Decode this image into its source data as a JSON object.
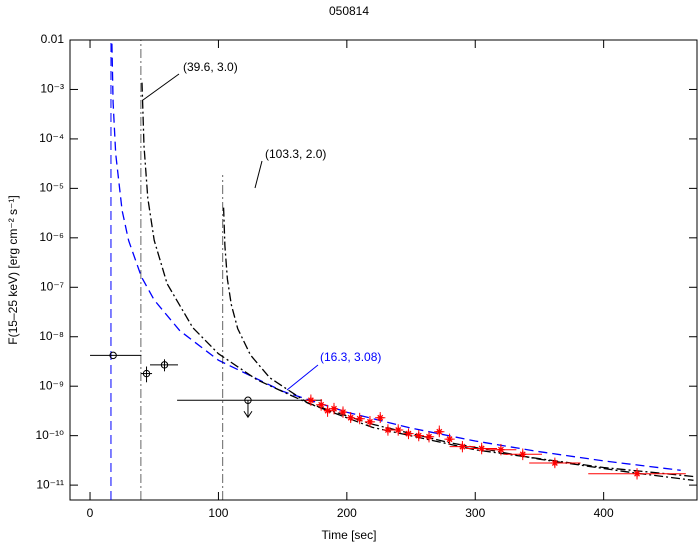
{
  "chart_data": {
    "type": "scatter",
    "title": "050814",
    "x_label": "Time [sec]",
    "y_label": "F(15–25 keV) [erg cm⁻² s⁻¹]",
    "log_y": true,
    "xlim": [
      -15.6,
      472.7
    ],
    "xticks": [
      0,
      100,
      200,
      300,
      400
    ],
    "ylim": [
      5e-12,
      0.01
    ],
    "yticks": [
      0.01,
      {
        "value": 0.001,
        "label": "10⁻³"
      },
      {
        "value": 0.0001,
        "label": "10⁻⁴"
      },
      {
        "value": 1e-05,
        "label": "10⁻⁵"
      },
      {
        "value": 1e-06,
        "label": "10⁻⁶"
      },
      {
        "value": 1e-07,
        "label": "10⁻⁷"
      },
      {
        "value": 1e-08,
        "label": "10⁻⁸"
      },
      {
        "value": 1e-09,
        "label": "10⁻⁹"
      },
      {
        "value": 1e-10,
        "label": "10⁻¹⁰"
      },
      {
        "value": 1e-11,
        "label": "10⁻¹¹"
      }
    ],
    "series": [
      {
        "color": "#000000",
        "marker": "circle",
        "x": [
          18,
          44,
          58,
          123
        ],
        "values": [
          4.2e-09,
          1.8e-09,
          2.7e-09,
          5.2e-10
        ],
        "xlo": [
          0,
          39.7,
          46.7,
          67.8
        ],
        "xhi": [
          40,
          48.3,
          68.5,
          180.7
        ],
        "ylo": [
          null,
          1.2e-09,
          2e-09,
          null
        ],
        "yhi": [
          null,
          2.5e-09,
          3.5e-09,
          null
        ],
        "upper_limit": [
          false,
          false,
          false,
          true
        ]
      },
      {
        "color": "#ff0000",
        "marker": "star",
        "x": [
          172,
          180,
          185,
          190,
          197,
          203,
          210,
          218,
          226,
          232,
          240,
          248,
          256,
          264,
          272,
          280,
          290,
          305,
          320,
          337,
          362,
          426
        ],
        "values": [
          5.2e-10,
          4.2e-10,
          3.2e-10,
          3.5e-10,
          3e-10,
          2.3e-10,
          2.2e-10,
          1.9e-10,
          2.3e-10,
          1.3e-10,
          1.3e-10,
          1.1e-10,
          1e-10,
          9.5e-11,
          1.2e-10,
          8.5e-11,
          6e-11,
          5.5e-11,
          5.2e-11,
          4.2e-11,
          2.8e-11,
          1.7e-11
        ],
        "xlo": [
          168,
          176,
          182,
          187,
          194,
          200,
          206,
          214,
          222,
          228,
          236,
          244,
          252,
          260,
          268,
          276,
          280,
          293,
          308,
          322,
          342,
          388
        ],
        "xhi": [
          176,
          184,
          188,
          193,
          200,
          206,
          214,
          222,
          230,
          236,
          244,
          252,
          260,
          268,
          276,
          284,
          300,
          317,
          332,
          352,
          382,
          464
        ],
        "ylo": [
          4e-10,
          3.2e-10,
          2.4e-10,
          2.7e-10,
          2.3e-10,
          1.8e-10,
          1.7e-10,
          1.5e-10,
          1.8e-10,
          1e-10,
          1e-10,
          8.5e-11,
          7.7e-11,
          7.3e-11,
          9.3e-11,
          6.6e-11,
          4.6e-11,
          4.2e-11,
          4e-11,
          3.2e-11,
          2.2e-11,
          1.3e-11
        ],
        "yhi": [
          6.8e-10,
          5.5e-10,
          4.2e-10,
          4.6e-10,
          3.9e-10,
          3e-10,
          2.9e-10,
          2.5e-10,
          3e-10,
          1.7e-10,
          1.7e-10,
          1.4e-10,
          1.3e-10,
          1.2e-10,
          1.6e-10,
          1.1e-10,
          7.8e-11,
          7.2e-11,
          6.8e-11,
          5.5e-11,
          3.6e-11,
          2.2e-11
        ]
      }
    ],
    "models": [
      {
        "label": "(16.3, 3.08)",
        "t0": 16.3,
        "color": "#0000ff",
        "dash": "dashed",
        "x": [
          17,
          18,
          20,
          25,
          30,
          40,
          50,
          70,
          100,
          150,
          200,
          250,
          300,
          350,
          400,
          460
        ],
        "values": [
          0.0084,
          0.000546,
          5e-05,
          3.58e-06,
          8.83e-07,
          1.63e-07,
          5.52e-08,
          1.32e-08,
          3.35e-09,
          7.9e-10,
          2.98e-10,
          1.42e-10,
          7.81e-11,
          4.74e-11,
          3.08e-11,
          1.99e-11
        ]
      },
      {
        "label": "(39.6, 3.0)",
        "t0": 39.6,
        "color": "#000000",
        "dash": "dashdot",
        "x": [
          40.5,
          42,
          45,
          50,
          60,
          80,
          100,
          130,
          170,
          220,
          280,
          350,
          420,
          470
        ],
        "values": [
          0.00137,
          7.2e-05,
          6.35e-06,
          8.9e-07,
          1.18e-07,
          1.52e-08,
          4.54e-09,
          1.35e-09,
          4.5e-10,
          1.7e-10,
          7.2e-11,
          3.34e-11,
          1.82e-11,
          1.25e-11
        ]
      },
      {
        "label": "(103.3, 2.0)",
        "t0": 103.3,
        "color": "#000000",
        "dash": "dashdot",
        "x": [
          104,
          105,
          107,
          110,
          115,
          125,
          140,
          170,
          220,
          300,
          400,
          470
        ],
        "values": [
          4.08e-06,
          6.9e-07,
          1.46e-07,
          4.46e-08,
          1.46e-08,
          4.25e-09,
          1.48e-09,
          4.5e-10,
          1.47e-10,
          5.17e-11,
          2.27e-11,
          1.49e-11
        ]
      }
    ]
  }
}
